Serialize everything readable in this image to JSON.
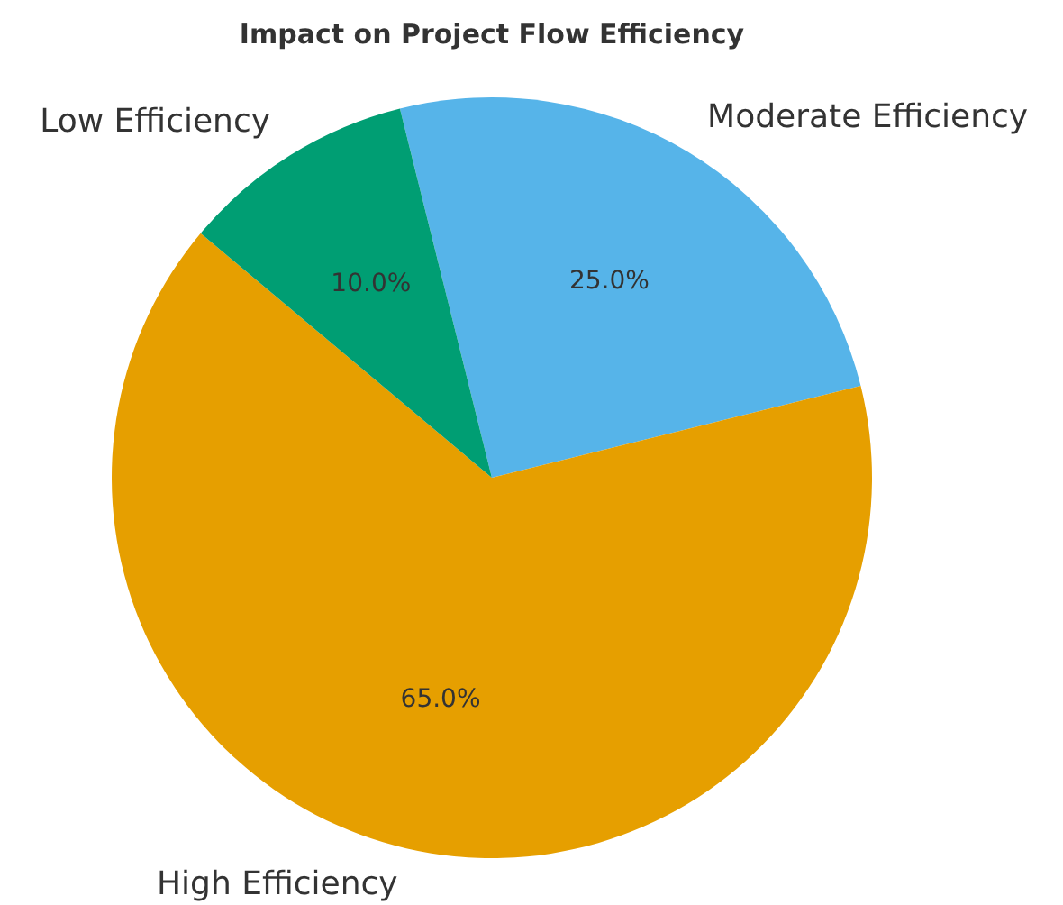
{
  "chart_data": {
    "type": "pie",
    "title": "Impact on Project Flow Efficiency",
    "categories": [
      "Moderate Efficiency",
      "High Efficiency",
      "Low Efficiency"
    ],
    "values": [
      25,
      65,
      10
    ],
    "colors": [
      "#56b4e9",
      "#e69f00",
      "#009e73"
    ],
    "value_labels": [
      "25.0%",
      "65.0%",
      "10.0%"
    ],
    "legend": false
  }
}
